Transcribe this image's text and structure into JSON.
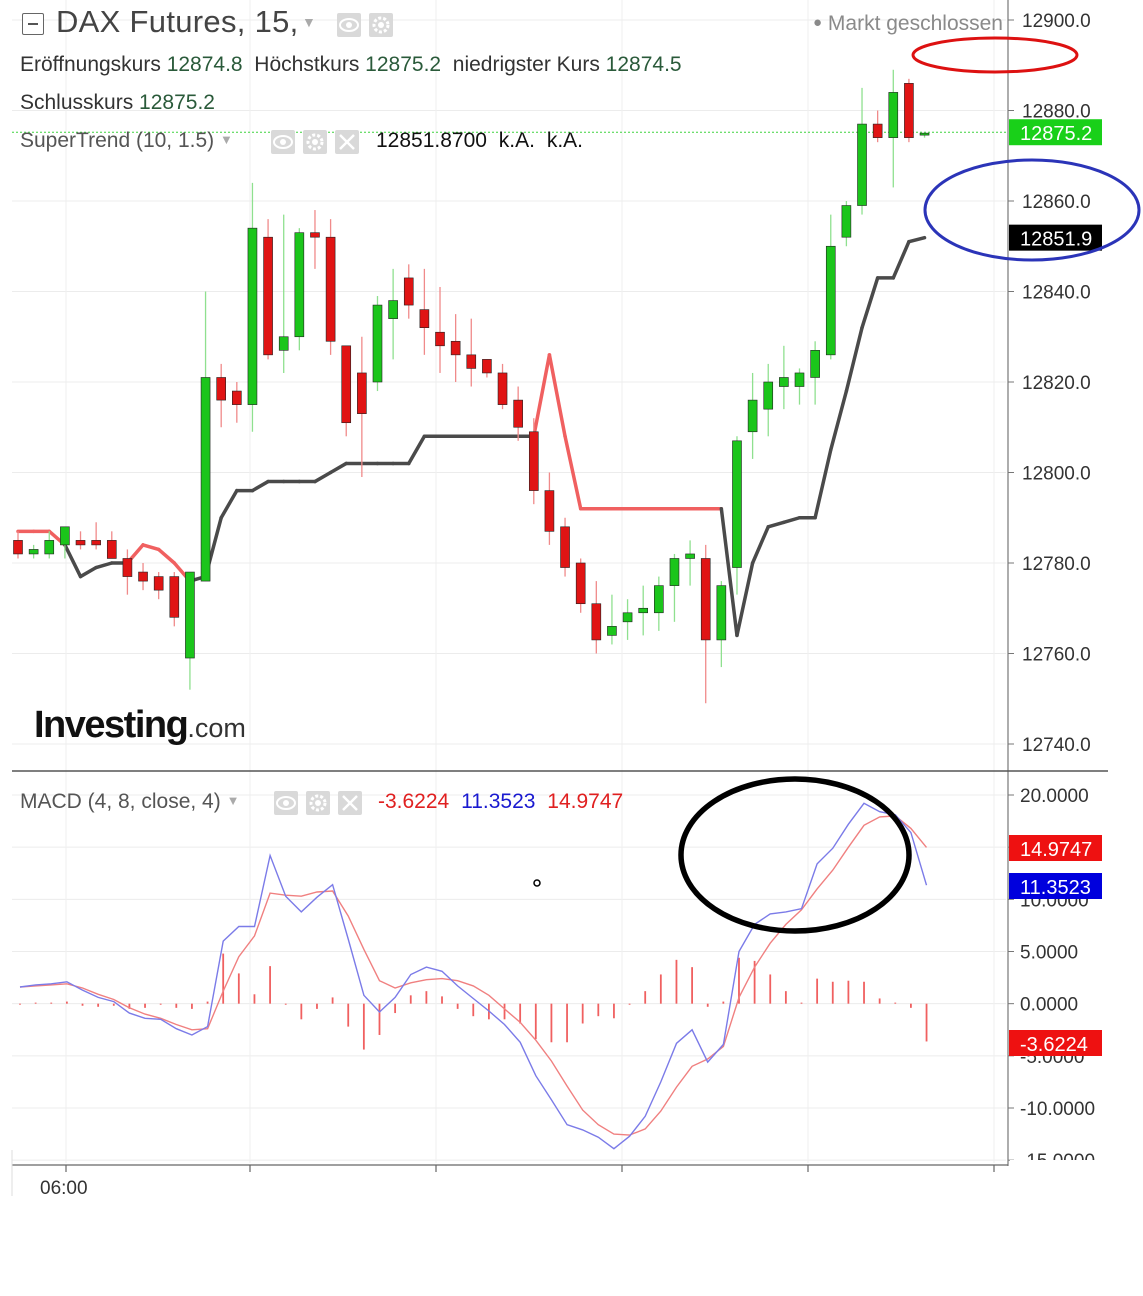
{
  "header": {
    "title": "DAX Futures, 15,",
    "market_status": "Markt geschlossen",
    "open_label": "Eröffnungskurs",
    "open_value": "12874.8",
    "high_label": "Höchstkurs",
    "high_value": "12875.2",
    "low_label": "niedrigster Kurs",
    "low_value": "12874.5",
    "close_label": "Schlusskurs",
    "close_value": "12875.2"
  },
  "supertrend": {
    "label": "SuperTrend (10, 1.5)",
    "value": "12851.8700",
    "na1": "k.A.",
    "na2": "k.A."
  },
  "macd": {
    "label": "MACD (4, 8, close, 4)",
    "hist_value": "-3.6224",
    "macd_value": "11.3523",
    "signal_value": "14.9747"
  },
  "logo": {
    "brand": "Investing",
    "suffix": ".com"
  },
  "colors": {
    "up": "#1bc51b",
    "down": "#e01414",
    "supertrend_up": "#4a4a4a",
    "supertrend_down": "#f06060",
    "macd": "#7b7be8",
    "signal": "#f08080",
    "hist": "#f06060",
    "price_tag": "#19d019"
  },
  "chart_data": [
    {
      "type": "candlestick",
      "title": "DAX Futures, 15,",
      "x_tick_labels": [
        "06:00"
      ],
      "ylim": [
        12735,
        12905
      ],
      "y_ticks": [
        "12900.0",
        "12880.0",
        "12860.0",
        "12840.0",
        "12820.0",
        "12800.0",
        "12780.0",
        "12760.0",
        "12740.0"
      ],
      "y_tick_values": [
        12900,
        12880,
        12860,
        12840,
        12820,
        12800,
        12780,
        12760,
        12740
      ],
      "price_tags": [
        {
          "label": "12875.2",
          "value": 12875.2,
          "color": "#19d019"
        },
        {
          "label": "12851.9",
          "value": 12851.9,
          "color": "#000000"
        }
      ],
      "candles": [
        {
          "o": 12785,
          "h": 12787,
          "l": 12781,
          "c": 12782
        },
        {
          "o": 12782,
          "h": 12784,
          "l": 12781,
          "c": 12783
        },
        {
          "o": 12782,
          "h": 12787,
          "l": 12781,
          "c": 12785
        },
        {
          "o": 12784,
          "h": 12788,
          "l": 12781,
          "c": 12788
        },
        {
          "o": 12785,
          "h": 12787,
          "l": 12783,
          "c": 12784
        },
        {
          "o": 12785,
          "h": 12789,
          "l": 12783,
          "c": 12784
        },
        {
          "o": 12785,
          "h": 12787,
          "l": 12781,
          "c": 12781
        },
        {
          "o": 12781,
          "h": 12783,
          "l": 12773,
          "c": 12777
        },
        {
          "o": 12778,
          "h": 12780,
          "l": 12774,
          "c": 12776
        },
        {
          "o": 12777,
          "h": 12778,
          "l": 12772,
          "c": 12774
        },
        {
          "o": 12777,
          "h": 12778,
          "l": 12766,
          "c": 12768
        },
        {
          "o": 12759,
          "h": 12777,
          "l": 12752,
          "c": 12778
        },
        {
          "o": 12776,
          "h": 12840,
          "l": 12776,
          "c": 12821
        },
        {
          "o": 12821,
          "h": 12824,
          "l": 12810,
          "c": 12816
        },
        {
          "o": 12818,
          "h": 12820,
          "l": 12811,
          "c": 12815
        },
        {
          "o": 12815,
          "h": 12864,
          "l": 12809,
          "c": 12854
        },
        {
          "o": 12852,
          "h": 12856,
          "l": 12825,
          "c": 12826
        },
        {
          "o": 12827,
          "h": 12857,
          "l": 12822,
          "c": 12830
        },
        {
          "o": 12830,
          "h": 12854,
          "l": 12827,
          "c": 12853
        },
        {
          "o": 12853,
          "h": 12858,
          "l": 12845,
          "c": 12852
        },
        {
          "o": 12852,
          "h": 12856,
          "l": 12826,
          "c": 12829
        },
        {
          "o": 12828,
          "h": 12828,
          "l": 12808,
          "c": 12811
        },
        {
          "o": 12822,
          "h": 12830,
          "l": 12799,
          "c": 12813
        },
        {
          "o": 12820,
          "h": 12839,
          "l": 12818,
          "c": 12837
        },
        {
          "o": 12834,
          "h": 12845,
          "l": 12825,
          "c": 12838
        },
        {
          "o": 12843,
          "h": 12846,
          "l": 12834,
          "c": 12837
        },
        {
          "o": 12836,
          "h": 12845,
          "l": 12826,
          "c": 12832
        },
        {
          "o": 12831,
          "h": 12841,
          "l": 12822,
          "c": 12828
        },
        {
          "o": 12829,
          "h": 12835,
          "l": 12820,
          "c": 12826
        },
        {
          "o": 12826,
          "h": 12834,
          "l": 12819,
          "c": 12823
        },
        {
          "o": 12825,
          "h": 12825,
          "l": 12821,
          "c": 12822
        },
        {
          "o": 12822,
          "h": 12824,
          "l": 12814,
          "c": 12815
        },
        {
          "o": 12816,
          "h": 12819,
          "l": 12807,
          "c": 12810
        },
        {
          "o": 12809,
          "h": 12812,
          "l": 12793,
          "c": 12796
        },
        {
          "o": 12796,
          "h": 12800,
          "l": 12784,
          "c": 12787
        },
        {
          "o": 12788,
          "h": 12790,
          "l": 12777,
          "c": 12779
        },
        {
          "o": 12780,
          "h": 12781,
          "l": 12769,
          "c": 12771
        },
        {
          "o": 12771,
          "h": 12776,
          "l": 12760,
          "c": 12763
        },
        {
          "o": 12764,
          "h": 12773,
          "l": 12762,
          "c": 12766
        },
        {
          "o": 12767,
          "h": 12772,
          "l": 12763,
          "c": 12769
        },
        {
          "o": 12769,
          "h": 12775,
          "l": 12764,
          "c": 12770
        },
        {
          "o": 12769,
          "h": 12777,
          "l": 12765,
          "c": 12775
        },
        {
          "o": 12775,
          "h": 12782,
          "l": 12767,
          "c": 12781
        },
        {
          "o": 12781,
          "h": 12785,
          "l": 12775,
          "c": 12782
        },
        {
          "o": 12781,
          "h": 12784,
          "l": 12749,
          "c": 12763
        },
        {
          "o": 12763,
          "h": 12776,
          "l": 12757,
          "c": 12775
        },
        {
          "o": 12779,
          "h": 12808,
          "l": 12773,
          "c": 12807
        },
        {
          "o": 12809,
          "h": 12822,
          "l": 12803,
          "c": 12816
        },
        {
          "o": 12814,
          "h": 12824,
          "l": 12808,
          "c": 12820
        },
        {
          "o": 12819,
          "h": 12828,
          "l": 12814,
          "c": 12821
        },
        {
          "o": 12819,
          "h": 12823,
          "l": 12815,
          "c": 12822
        },
        {
          "o": 12821,
          "h": 12829,
          "l": 12815,
          "c": 12827
        },
        {
          "o": 12826,
          "h": 12857,
          "l": 12825,
          "c": 12850
        },
        {
          "o": 12852,
          "h": 12860,
          "l": 12850,
          "c": 12859
        },
        {
          "o": 12859,
          "h": 12885,
          "l": 12857,
          "c": 12877
        },
        {
          "o": 12877,
          "h": 12880,
          "l": 12873,
          "c": 12874
        },
        {
          "o": 12874,
          "h": 12889,
          "l": 12863,
          "c": 12884
        },
        {
          "o": 12886,
          "h": 12887,
          "l": 12873,
          "c": 12874
        },
        {
          "o": 12875,
          "h": 12875,
          "l": 12874,
          "c": 12875
        }
      ],
      "supertrend": [
        12787,
        12787,
        12787,
        12784,
        12777,
        12779,
        12780,
        12780,
        12784,
        12783,
        12780,
        12776,
        12777,
        12790,
        12796,
        12796,
        12798,
        12798,
        12798,
        12798,
        12800,
        12802,
        12802,
        12802,
        12802,
        12802,
        12808,
        12808,
        12808,
        12808,
        12808,
        12808,
        12808,
        12808,
        12826,
        12808,
        12792,
        12792,
        12792,
        12792,
        12792,
        12792,
        12792,
        12792,
        12792,
        12792,
        12764,
        12780,
        12788,
        12789,
        12790,
        12790,
        12805,
        12818,
        12832,
        12843,
        12843,
        12851,
        12851.9
      ],
      "supertrend_direction": [
        "down",
        "down",
        "down",
        "down",
        "up",
        "up",
        "up",
        "up",
        "down",
        "down",
        "down",
        "down",
        "up",
        "up",
        "up",
        "up",
        "up",
        "up",
        "up",
        "up",
        "up",
        "up",
        "up",
        "up",
        "up",
        "up",
        "up",
        "up",
        "up",
        "up",
        "up",
        "up",
        "up",
        "up",
        "down",
        "down",
        "down",
        "down",
        "down",
        "down",
        "down",
        "down",
        "down",
        "down",
        "down",
        "down",
        "up",
        "up",
        "up",
        "up",
        "up",
        "up",
        "up",
        "up",
        "up",
        "up",
        "up",
        "up",
        "up"
      ]
    },
    {
      "type": "line",
      "title": "MACD (4, 8, close, 4)",
      "ylim": [
        -15,
        22
      ],
      "y_ticks": [
        "20.0000",
        "15.0000",
        "10.0000",
        "5.0000",
        "0.0000",
        "-5.0000",
        "-10.0000",
        "-15.0000"
      ],
      "y_tick_values": [
        20,
        15,
        10,
        5,
        0,
        -5,
        -10,
        -15
      ],
      "value_tags": [
        {
          "label": "14.9747",
          "value": 14.9747,
          "color": "#ee1111"
        },
        {
          "label": "11.3523",
          "value": 11.3523,
          "color": "#0000dd"
        },
        {
          "label": "-3.6224",
          "value": -3.6224,
          "color": "#ee1111"
        }
      ],
      "series": [
        {
          "values": [
            1.6,
            1.8,
            1.9,
            2.1,
            1.3,
            0.6,
            0.2,
            -0.9,
            -1.4,
            -1.5,
            -2.4,
            -3.0,
            -2.2,
            6.0,
            7.4,
            7.4,
            14.2,
            10.3,
            8.8,
            10.2,
            11.4,
            6.2,
            0.8,
            -0.8,
            0.6,
            2.8,
            3.5,
            3.1,
            1.7,
            0.5,
            -0.7,
            -2.0,
            -3.7,
            -6.9,
            -9.2,
            -11.6,
            -12.1,
            -12.8,
            -13.9,
            -12.7,
            -10.8,
            -7.5,
            -3.8,
            -2.5,
            -5.6,
            -3.9,
            5.0,
            7.6,
            8.6,
            8.8,
            9.1,
            13.4,
            14.9,
            17.2,
            19.2,
            18.4,
            18.1,
            16.4,
            11.3523
          ]
        },
        {
          "values": [
            1.6,
            1.7,
            1.8,
            1.9,
            1.5,
            0.9,
            0.4,
            -0.4,
            -1.0,
            -1.4,
            -2.0,
            -2.5,
            -2.4,
            1.2,
            4.5,
            6.5,
            10.6,
            10.4,
            10.3,
            10.7,
            10.8,
            8.4,
            5.2,
            2.2,
            1.5,
            2.0,
            2.3,
            2.4,
            2.2,
            1.7,
            0.8,
            -0.5,
            -1.8,
            -3.5,
            -5.5,
            -7.9,
            -10.2,
            -11.6,
            -12.5,
            -12.6,
            -12.0,
            -10.3,
            -8.0,
            -6.0,
            -5.3,
            -4.1,
            0.6,
            3.5,
            5.8,
            7.6,
            9.0,
            11.0,
            12.8,
            15.0,
            17.1,
            17.9,
            18.0,
            16.8,
            14.9747
          ]
        },
        {
          "values": [
            0,
            0.1,
            0.1,
            0.2,
            -0.2,
            -0.3,
            -0.2,
            -0.5,
            -0.4,
            -0.1,
            -0.4,
            -0.5,
            0.2,
            4.8,
            2.9,
            0.9,
            3.6,
            -0.1,
            -1.5,
            -0.5,
            0.6,
            -2.2,
            -4.4,
            -3.0,
            -0.9,
            0.8,
            1.2,
            0.7,
            -0.5,
            -1.2,
            -1.5,
            -1.5,
            -1.9,
            -3.4,
            -3.7,
            -3.7,
            -1.9,
            -1.2,
            -1.4,
            -0.1,
            1.2,
            2.8,
            4.2,
            3.5,
            -0.3,
            0.2,
            4.4,
            4.1,
            2.8,
            1.2,
            0.1,
            2.4,
            2.1,
            2.2,
            2.1,
            0.5,
            0.1,
            -0.4,
            -3.6224
          ]
        }
      ]
    }
  ]
}
